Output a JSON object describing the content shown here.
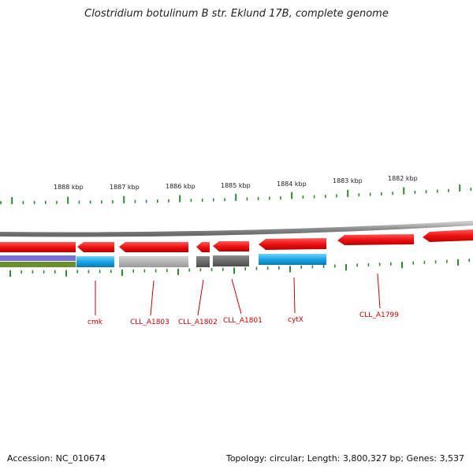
{
  "title": "Clostridium botulinum B str. Eklund 17B, complete genome",
  "footer": {
    "accession": "Accession: NC_010674",
    "summary": "Topology: circular; Length: 3,800,327 bp; Genes: 3,537"
  },
  "colors": {
    "backbone": "#8c8c8c",
    "gene_forward_red": "#ee1111",
    "gene_cyan": "#1aa6e6",
    "gene_light_gray": "#a9a9a9",
    "gene_dark_gray": "#666666",
    "tick_green": "#2e8b2e",
    "label_red": "#cc0000",
    "band_purple": "#7b6fd0",
    "band_olive": "#6b8f2a"
  },
  "scale": {
    "ticks": [
      "1888 kbp",
      "1887 kbp",
      "1886 kbp",
      "1885 kbp",
      "1884 kbp",
      "1883 kbp",
      "1882 kbp"
    ]
  },
  "genes": {
    "labels": [
      "cmk",
      "CLL_A1803",
      "CLL_A1802",
      "CLL_A1801",
      "cytX",
      "CLL_A1799"
    ]
  }
}
